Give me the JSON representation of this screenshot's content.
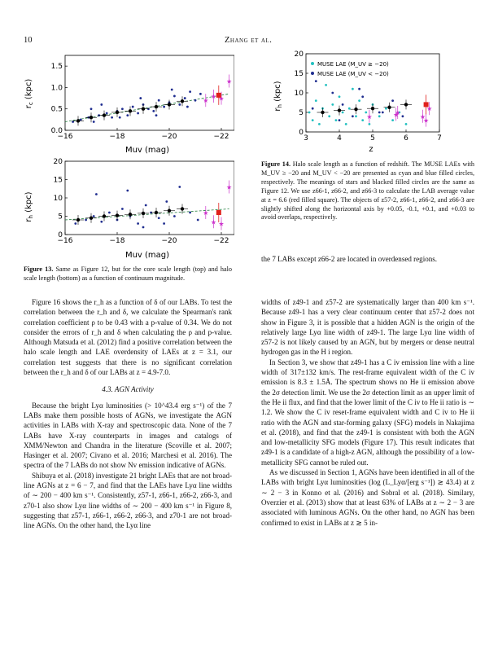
{
  "header": {
    "page_number": "10",
    "running_head": "Zhang et al."
  },
  "figure13": {
    "caption_label": "Figure 13.",
    "caption_text": "Same as Figure 12, but for the core scale length (top) and halo scale length (bottom) as a function of continuum magnitude."
  },
  "figure14": {
    "caption_label": "Figure 14.",
    "caption_text": "Halo scale length as a function of redshift. The MUSE LAEs with M_UV ≥ −20 and M_UV < −20 are presented as cyan and blue filled circles, respectively. The meanings of stars and blacked filled circles are the same as Figure 12. We use z66-1, z66-2, and z66-3 to calculate the LAB average value at z = 6.6 (red filled square). The objects of z57-2, z66-1, z66-2, and z66-3 are slightly shifted along the horizontal axis by +0.05, -0.1, +0.1, and +0.03 to avoid overlaps, respectively."
  },
  "chart_data": [
    {
      "type": "scatter",
      "title": "",
      "xlabel": "Muv (mag)",
      "ylabel": "r_c (kpc)",
      "xlim": [
        -16,
        -22.5
      ],
      "ylim": [
        0,
        1.75
      ],
      "xticks": [
        "−16",
        "−18",
        "−20",
        "−22"
      ],
      "yticks": [
        "0.0",
        "0.5",
        "1.0",
        "1.5"
      ],
      "series": [
        {
          "name": "",
          "color": "#1f2d8f",
          "x": [
            -16.3,
            -16.6,
            -16.9,
            -17.1,
            -17.3,
            -17.6,
            -17.8,
            -18.0,
            -18.2,
            -18.4,
            -18.6,
            -18.8,
            -19.0,
            -19.2,
            -19.4,
            -19.6,
            -19.8,
            -20.0,
            -20.2,
            -20.4,
            -20.6,
            -20.8,
            -21.0,
            -21.2,
            -17.0,
            -17.4,
            -18.1,
            -18.9,
            -19.5,
            -20.1,
            -20.7
          ],
          "y": [
            0.2,
            0.25,
            0.3,
            0.2,
            0.35,
            0.4,
            0.3,
            0.45,
            0.5,
            0.35,
            0.55,
            0.4,
            0.6,
            0.5,
            0.45,
            0.7,
            0.55,
            0.65,
            0.8,
            0.6,
            0.75,
            0.9,
            0.7,
            0.85,
            0.5,
            0.6,
            0.3,
            0.75,
            0.35,
            0.95,
            0.55
          ]
        },
        {
          "name": "",
          "color": "#000000",
          "x": [
            -16.5,
            -17.0,
            -17.5,
            -18.0,
            -18.5,
            -19.0,
            -19.5,
            -20.0,
            -20.5
          ],
          "y": [
            0.22,
            0.3,
            0.35,
            0.42,
            0.45,
            0.5,
            0.55,
            0.6,
            0.68
          ]
        },
        {
          "name": "",
          "color": "#cc33cc",
          "x": [
            -21.4,
            -21.7,
            -22.0,
            -22.3
          ],
          "y": [
            0.7,
            0.8,
            0.75,
            1.15
          ]
        },
        {
          "name": "",
          "color": "#e0201c",
          "x": [
            -21.9
          ],
          "y": [
            0.82
          ]
        }
      ]
    },
    {
      "type": "scatter",
      "title": "",
      "xlabel": "Muv (mag)",
      "ylabel": "r_h (kpc)",
      "xlim": [
        -16,
        -22.5
      ],
      "ylim": [
        0,
        20
      ],
      "xticks": [
        "−16",
        "−18",
        "−20",
        "−22"
      ],
      "yticks": [
        "0",
        "5",
        "10",
        "15",
        "20"
      ],
      "series": [
        {
          "name": "",
          "color": "#1f2d8f",
          "x": [
            -16.4,
            -16.8,
            -17.1,
            -17.4,
            -17.7,
            -18.0,
            -18.2,
            -18.5,
            -18.8,
            -19.1,
            -19.3,
            -19.6,
            -19.9,
            -20.2,
            -20.5,
            -20.8,
            -21.1,
            -17.2,
            -18.4,
            -19.0,
            -19.8,
            -20.4
          ],
          "y": [
            3,
            4,
            5,
            3.5,
            6,
            4,
            7,
            5,
            3,
            8,
            6,
            4.5,
            9,
            5,
            7,
            6,
            4,
            11,
            12,
            2,
            3,
            13
          ]
        },
        {
          "name": "",
          "color": "#000000",
          "x": [
            -16.5,
            -17.0,
            -17.5,
            -18.0,
            -18.5,
            -19.0,
            -19.5,
            -20.0,
            -20.5
          ],
          "y": [
            4,
            4.5,
            5,
            5.2,
            5.5,
            5.8,
            6,
            6.5,
            7
          ]
        },
        {
          "name": "",
          "color": "#cc33cc",
          "x": [
            -21.4,
            -21.7,
            -22.0,
            -22.3
          ],
          "y": [
            6,
            3.5,
            3,
            13
          ]
        },
        {
          "name": "",
          "color": "#e0201c",
          "x": [
            -21.9
          ],
          "y": [
            6
          ]
        }
      ]
    },
    {
      "type": "scatter",
      "title": "",
      "xlabel": "z",
      "ylabel": "r_h (kpc)",
      "xlim": [
        3,
        7
      ],
      "ylim": [
        0,
        20
      ],
      "xticks": [
        "3",
        "4",
        "5",
        "6",
        "7"
      ],
      "yticks": [
        "0",
        "5",
        "10",
        "15",
        "20"
      ],
      "legend": [
        "MUSE LAE (M_UV ≥ −20)",
        "MUSE LAE (M_UV < −20)"
      ],
      "legend_position": "top-left",
      "series": [
        {
          "name": "MUSE LAE (M_UV ≥ −20)",
          "color": "#22c0c0",
          "x": [
            3.1,
            3.2,
            3.3,
            3.4,
            3.5,
            3.6,
            3.7,
            3.8,
            3.9,
            4.0,
            4.1,
            4.2,
            4.3,
            4.4,
            4.5,
            4.6,
            4.7,
            4.8,
            4.9,
            5.0,
            5.2,
            5.4,
            5.6,
            5.8,
            6.0
          ],
          "y": [
            5,
            3,
            8,
            2,
            6,
            12,
            4,
            7,
            3,
            9,
            5,
            2,
            6,
            11,
            4,
            8,
            3,
            5,
            2,
            7,
            4,
            6,
            3,
            5,
            2
          ]
        },
        {
          "name": "MUSE LAE (M_UV < −20)",
          "color": "#1f2d8f",
          "x": [
            3.2,
            3.5,
            3.8,
            4.1,
            4.4,
            4.7,
            5.0,
            5.3,
            5.6,
            5.9,
            3.3,
            4.0,
            4.6,
            5.2
          ],
          "y": [
            6,
            5,
            10,
            7,
            4,
            9,
            6,
            5,
            8,
            4,
            13,
            3,
            11,
            5
          ]
        },
        {
          "name": "",
          "color": "#000000",
          "x": [
            3.5,
            4.0,
            4.5,
            5.0,
            5.5,
            6.0
          ],
          "y": [
            5,
            5.5,
            5.8,
            6,
            6.3,
            7
          ]
        },
        {
          "name": "",
          "color": "#cc33cc",
          "x": [
            4.9,
            5.7,
            5.75,
            6.5,
            6.6,
            6.7
          ],
          "y": [
            4,
            4.5,
            5,
            4,
            3,
            6
          ]
        },
        {
          "name": "",
          "color": "#e0201c",
          "x": [
            6.6
          ],
          "y": [
            7
          ]
        }
      ]
    }
  ],
  "right_col_top": "the 7 LABs except z66-2 are located in overdensed regions.",
  "left_paragraphs": [
    "Figure 16 shows the r_h as a function of δ of our LABs. To test the correlation between the r_h and δ, we calculate the Spearman's rank correlation coefficient ρ to be 0.43 with a p-value of 0.34. We do not consider the errors of r_h and δ when calculating the ρ and p-value. Although Matsuda et al. (2012) find a positive correlation between the halo scale length and LAE overdensity of LAEs at z = 3.1, our correlation test suggests that there is no significant correlation between the r_h and δ of our LABs at z = 4.9-7.0."
  ],
  "section_title": "4.3.   AGN Activity",
  "left_paragraphs_2": [
    "Because the bright Lyα luminosities (> 10^43.4 erg s⁻¹) of the 7 LABs make them possible hosts of AGNs, we investigate the AGN activities in LABs with X-ray and spectroscopic data. None of the 7 LABs have X-ray counterparts in images and catalogs of XMM/Newton and Chandra in the literature (Scoville et al. 2007; Hasinger et al. 2007; Civano et al. 2016; Marchesi et al. 2016). The spectra of the 7 LABs do not show Nv emission indicative of AGNs.",
    "Shibuya et al. (2018) investigate 21 bright LAEs that are not broad-line AGNs at z = 6 − 7, and find that the LAEs have Lyα line widths of ∼ 200 − 400 km s⁻¹. Consistently, z57-1, z66-1, z66-2, z66-3, and z70-1 also show Lyα line widths of ∼ 200 − 400 km s⁻¹ in Figure 8, suggesting that z57-1, z66-1, z66-2, z66-3, and z70-1 are not broad-line AGNs. On the other hand, the Lyα line"
  ],
  "right_paragraphs": [
    "widths of z49-1 and z57-2 are systematically larger than 400 km s⁻¹. Because z49-1 has a very clear continuum center that z57-2 does not show in Figure 3, it is possible that a hidden AGN is the origin of the relatively large Lyα line width of z49-1. The large Lyα line width of z57-2 is not likely caused by an AGN, but by mergers or dense neutral hydrogen gas in the H i region.",
    "In Section 3, we show that z49-1 has a C iv emission line with a line width of 317±132 km/s. The rest-frame equivalent width of the C iv emission is 8.3 ± 1.5Å. The spectrum shows no He ii emission above the 2σ detection limit. We use the 2σ detection limit as an upper limit of the He ii flux, and find that the lower limit of the C iv to He ii ratio is ∼ 1.2. We show the C iv reset-frame equivalent width and C iv to He ii ratio with the AGN and star-forming galaxy (SFG) models in Nakajima et al. (2018), and find that the z49-1 is consistent with both the AGN and low-metallicity SFG models (Figure 17). This result indicates that z49-1 is a candidate of a high-z AGN, although the possibility of a low-metallicity SFG cannot be ruled out.",
    "As we discussed in Section 1, AGNs have been identified in all of the LABs with bright Lyα luminosities (log (L_Lyα/[erg s⁻¹]) ≳ 43.4) at z ∼ 2 − 3 in Konno et al. (2016) and Sobral et al. (2018). Similary, Overzier et al. (2013) show that at least 63% of LABs at z ∼ 2 − 3 are associated with luminous AGNs. On the other hand, no AGN has been confirmed to exist in LABs at z ≳ 5 in-"
  ]
}
